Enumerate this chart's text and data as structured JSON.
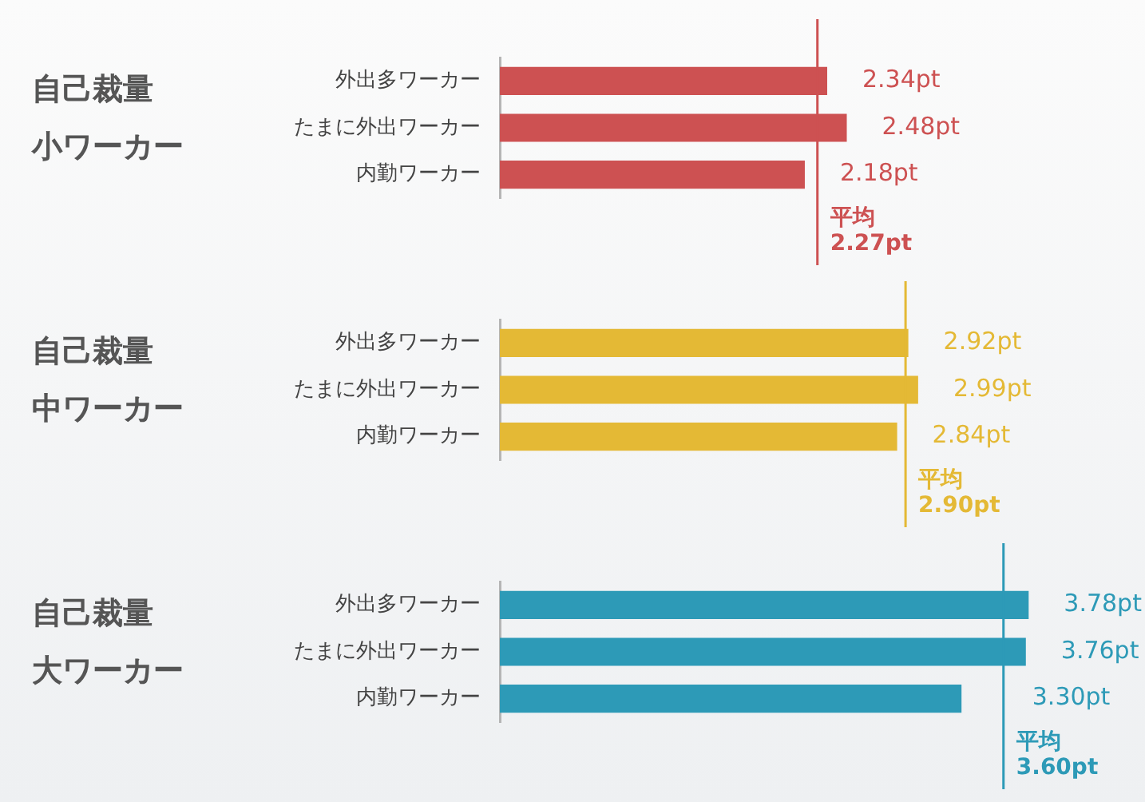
{
  "chart_data": [
    {
      "type": "bar",
      "orientation": "horizontal",
      "title": "自己裁量小ワーカー",
      "categories": [
        "外出多ワーカー",
        "たまに外出ワーカー",
        "内勤ワーカー"
      ],
      "values": [
        2.34,
        2.48,
        2.18
      ],
      "color": "#cd5152",
      "value_labels": [
        "2.34pt",
        "2.48pt",
        "2.18pt"
      ],
      "legend": false,
      "ref_lines": [
        {
          "axis": "x",
          "value": 2.27,
          "label": "平均\n2.27pt",
          "color": "#cd5152"
        }
      ]
    },
    {
      "type": "bar",
      "orientation": "horizontal",
      "title": "自己裁量中ワーカー",
      "categories": [
        "外出多ワーカー",
        "たまに外出ワーカー",
        "内勤ワーカー"
      ],
      "values": [
        2.92,
        2.99,
        2.84
      ],
      "color": "#e4b935",
      "value_labels": [
        "2.92pt",
        "2.99pt",
        "2.84pt"
      ],
      "legend": false,
      "ref_lines": [
        {
          "axis": "x",
          "value": 2.9,
          "label": "平均\n2.90pt",
          "color": "#e4b935"
        }
      ]
    },
    {
      "type": "bar",
      "orientation": "horizontal",
      "title": "自己裁量大ワーカー",
      "categories": [
        "外出多ワーカー",
        "たまに外出ワーカー",
        "内勤ワーカー"
      ],
      "values": [
        3.78,
        3.76,
        3.3
      ],
      "color": "#2d9ab7",
      "value_labels": [
        "3.78pt",
        "3.76pt",
        "3.30pt"
      ],
      "legend": false,
      "ref_lines": [
        {
          "axis": "x",
          "value": 3.6,
          "label": "平均\n3.60pt",
          "color": "#2d9ab7"
        }
      ]
    }
  ]
}
